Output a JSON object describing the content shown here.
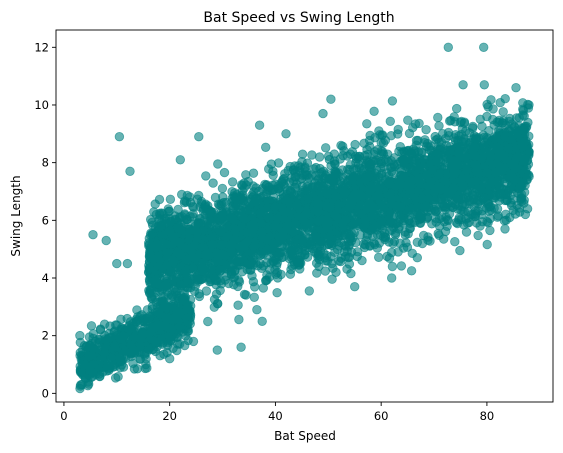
{
  "chart_data": {
    "type": "scatter",
    "title": "Bat Speed vs Swing Length",
    "xlabel": "Bat Speed",
    "ylabel": "Swing Length",
    "xlim": [
      -1.5,
      92.5
    ],
    "ylim": [
      -0.3,
      12.6
    ],
    "xticks": [
      0,
      20,
      40,
      60,
      80
    ],
    "yticks": [
      0,
      2,
      4,
      6,
      8,
      10,
      12
    ],
    "grid": false,
    "legend": "none",
    "marker_color": "#008080",
    "marker_alpha": 0.6,
    "clusters": [
      {
        "x_range": [
          3,
          24
        ],
        "y_at_x_min": 0.9,
        "y_at_x_max": 2.8,
        "y_spread": 0.9
      },
      {
        "x_range": [
          16,
          88
        ],
        "y_at_x_min": 4.6,
        "y_at_x_max": 8.2,
        "y_spread": 1.9
      }
    ],
    "points": [
      {
        "x": 72.7,
        "y": 12.0
      },
      {
        "x": 79.4,
        "y": 12.0
      },
      {
        "x": 10.5,
        "y": 8.9
      },
      {
        "x": 25.5,
        "y": 8.9
      },
      {
        "x": 12.5,
        "y": 7.7
      },
      {
        "x": 22.0,
        "y": 8.1
      },
      {
        "x": 37.0,
        "y": 9.3
      },
      {
        "x": 42.0,
        "y": 9.0
      },
      {
        "x": 49.0,
        "y": 9.7
      },
      {
        "x": 50.5,
        "y": 10.2
      },
      {
        "x": 75.5,
        "y": 10.7
      },
      {
        "x": 79.5,
        "y": 10.7
      },
      {
        "x": 85.5,
        "y": 10.6
      },
      {
        "x": 5.5,
        "y": 5.5
      },
      {
        "x": 8.0,
        "y": 5.3
      },
      {
        "x": 10.0,
        "y": 4.5
      },
      {
        "x": 12.0,
        "y": 4.5
      },
      {
        "x": 36.5,
        "y": 2.9
      },
      {
        "x": 37.5,
        "y": 2.5
      },
      {
        "x": 33.5,
        "y": 1.6
      },
      {
        "x": 29.0,
        "y": 1.5
      },
      {
        "x": 24.5,
        "y": 1.8
      },
      {
        "x": 20.5,
        "y": 3.0
      },
      {
        "x": 15.5,
        "y": 1.0
      },
      {
        "x": 20.0,
        "y": 1.2
      },
      {
        "x": 55.0,
        "y": 3.7
      },
      {
        "x": 62.0,
        "y": 4.0
      }
    ]
  }
}
